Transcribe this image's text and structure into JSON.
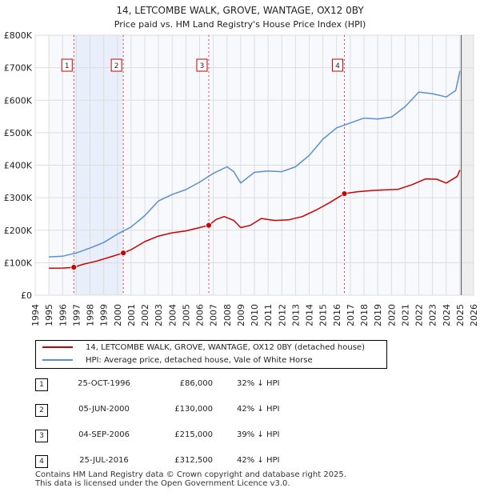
{
  "chart_data": {
    "type": "line",
    "title": "14, LETCOMBE WALK, GROVE, WANTAGE, OX12 0BY",
    "subtitle": "Price paid vs. HM Land Registry's House Price Index (HPI)",
    "xlim": [
      1994,
      2026
    ],
    "ylim": [
      0,
      800000
    ],
    "x_ticks": [
      "1994",
      "1995",
      "1996",
      "1997",
      "1998",
      "1999",
      "2000",
      "2001",
      "2002",
      "2003",
      "2004",
      "2005",
      "2006",
      "2007",
      "2008",
      "2009",
      "2010",
      "2011",
      "2012",
      "2013",
      "2014",
      "2015",
      "2016",
      "2017",
      "2018",
      "2019",
      "2020",
      "2021",
      "2022",
      "2023",
      "2024",
      "2025",
      "2026"
    ],
    "y_ticks": [
      {
        "value": 0,
        "label": "£0"
      },
      {
        "value": 100000,
        "label": "£100K"
      },
      {
        "value": 200000,
        "label": "£200K"
      },
      {
        "value": 300000,
        "label": "£300K"
      },
      {
        "value": 400000,
        "label": "£400K"
      },
      {
        "value": 500000,
        "label": "£500K"
      },
      {
        "value": 600000,
        "label": "£600K"
      },
      {
        "value": 700000,
        "label": "£700K"
      },
      {
        "value": 800000,
        "label": "£800K"
      }
    ],
    "data_range": [
      1995,
      2025.1
    ],
    "sale_spans": [
      [
        1996.82,
        2000.43
      ]
    ],
    "series": [
      {
        "name": "14, LETCOMBE WALK, GROVE, WANTAGE, OX12 0BY (detached house)",
        "color": "#cc0000",
        "points": [
          [
            1995,
            83000
          ],
          [
            1996,
            83500
          ],
          [
            1996.82,
            86000
          ],
          [
            1997.5,
            95000
          ],
          [
            1998.5,
            105000
          ],
          [
            1999.5,
            118000
          ],
          [
            2000.43,
            130000
          ],
          [
            2001,
            140000
          ],
          [
            2002,
            165000
          ],
          [
            2003,
            182000
          ],
          [
            2004,
            192000
          ],
          [
            2005,
            198000
          ],
          [
            2006,
            208000
          ],
          [
            2006.67,
            215000
          ],
          [
            2007.2,
            233000
          ],
          [
            2007.8,
            242000
          ],
          [
            2008.5,
            230000
          ],
          [
            2009,
            208000
          ],
          [
            2009.7,
            215000
          ],
          [
            2010.5,
            236000
          ],
          [
            2011.5,
            230000
          ],
          [
            2012.5,
            232000
          ],
          [
            2013.5,
            242000
          ],
          [
            2014.5,
            262000
          ],
          [
            2015.5,
            285000
          ],
          [
            2016.57,
            312500
          ],
          [
            2017.5,
            318000
          ],
          [
            2018.5,
            322000
          ],
          [
            2019.5,
            324000
          ],
          [
            2020.5,
            326000
          ],
          [
            2021.5,
            340000
          ],
          [
            2022.5,
            358000
          ],
          [
            2023.3,
            357000
          ],
          [
            2024,
            345000
          ],
          [
            2024.8,
            365000
          ],
          [
            2025,
            385000
          ]
        ]
      },
      {
        "name": "HPI: Average price, detached house, Vale of White Horse",
        "color": "#5b8fd0",
        "points": [
          [
            1995,
            118000
          ],
          [
            1996,
            120000
          ],
          [
            1997,
            130000
          ],
          [
            1998,
            145000
          ],
          [
            1999,
            162000
          ],
          [
            2000,
            188000
          ],
          [
            2001,
            210000
          ],
          [
            2002,
            245000
          ],
          [
            2003,
            290000
          ],
          [
            2004,
            310000
          ],
          [
            2005,
            325000
          ],
          [
            2006,
            348000
          ],
          [
            2007,
            375000
          ],
          [
            2008,
            395000
          ],
          [
            2008.5,
            380000
          ],
          [
            2009,
            345000
          ],
          [
            2010,
            378000
          ],
          [
            2011,
            382000
          ],
          [
            2012,
            380000
          ],
          [
            2013,
            395000
          ],
          [
            2014,
            430000
          ],
          [
            2015,
            480000
          ],
          [
            2016,
            515000
          ],
          [
            2017,
            530000
          ],
          [
            2018,
            545000
          ],
          [
            2019,
            542000
          ],
          [
            2020,
            548000
          ],
          [
            2021,
            580000
          ],
          [
            2022,
            625000
          ],
          [
            2023,
            620000
          ],
          [
            2024,
            610000
          ],
          [
            2024.7,
            630000
          ],
          [
            2025,
            690000
          ]
        ]
      }
    ],
    "markers": [
      {
        "label": "1",
        "x": 1996.82,
        "y": 86000
      },
      {
        "label": "2",
        "x": 2000.43,
        "y": 130000
      },
      {
        "label": "3",
        "x": 2006.67,
        "y": 215000
      },
      {
        "label": "4",
        "x": 2016.57,
        "y": 312500
      }
    ]
  },
  "legend": {
    "property": "14, LETCOMBE WALK, GROVE, WANTAGE, OX12 0BY (detached house)",
    "hpi": "HPI: Average price, detached house, Vale of White Horse"
  },
  "sales": [
    {
      "num": "1",
      "date": "25-OCT-1996",
      "price": "£86,000",
      "hpi": "32% ↓ HPI"
    },
    {
      "num": "2",
      "date": "05-JUN-2000",
      "price": "£130,000",
      "hpi": "42% ↓ HPI"
    },
    {
      "num": "3",
      "date": "04-SEP-2006",
      "price": "£215,000",
      "hpi": "39% ↓ HPI"
    },
    {
      "num": "4",
      "date": "25-JUL-2016",
      "price": "£312,500",
      "hpi": "42% ↓ HPI"
    }
  ],
  "footer": {
    "line1": "Contains HM Land Registry data © Crown copyright and database right 2025.",
    "line2": "This data is licensed under the Open Government Licence v3.0."
  }
}
